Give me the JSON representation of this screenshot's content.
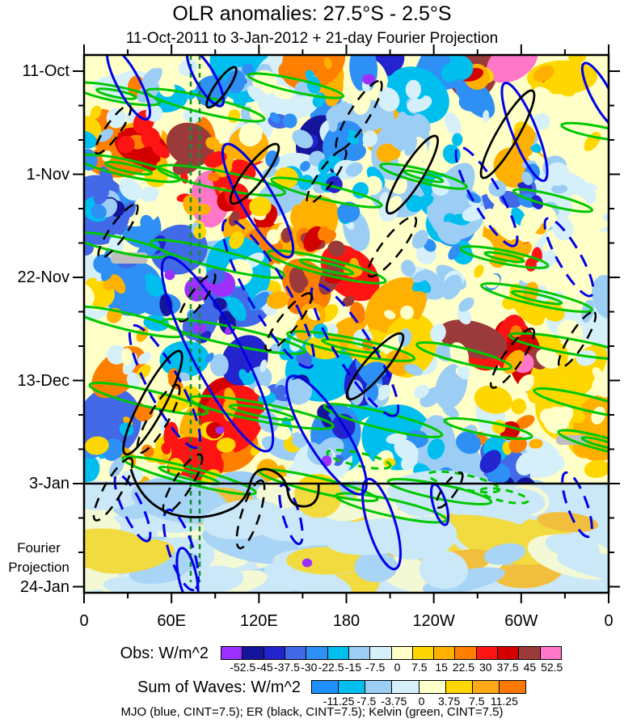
{
  "chart_data": {
    "type": "heatmap",
    "subtype": "hovmoller-time-longitude",
    "title": "OLR anomalies: 27.5°S - 2.5°S",
    "subtitle": "11-Oct-2011 to 3-Jan-2012 + 21-day Fourier Projection",
    "x_axis": {
      "ticks": [
        "0",
        "60E",
        "120E",
        "180",
        "120W",
        "60W",
        "0"
      ],
      "minor_ticks_per_interval": 1
    },
    "y_axis": {
      "ticks": [
        "11-Oct",
        "1-Nov",
        "22-Nov",
        "13-Dec",
        "3-Jan",
        "24-Jan"
      ],
      "minor_ticks_per_interval": 2,
      "annotation": [
        "Fourier",
        "Projection"
      ]
    },
    "obs_colorbar": {
      "label": "Obs: W/m^2",
      "tick_labels": [
        "-52.5",
        "-45",
        "-37.5",
        "-30",
        "-22.5",
        "-15",
        "-7.5",
        "0",
        "7.5",
        "15",
        "22.5",
        "30",
        "37.5",
        "45",
        "52.5"
      ],
      "colors": [
        "#9B30FF",
        "#15159B",
        "#2424CE",
        "#4169E8",
        "#2E8FF5",
        "#00BFEF",
        "#9CCEF5",
        "#D6F0FA",
        "#FFFFC8",
        "#FFD700",
        "#FFB000",
        "#FF7F00",
        "#FF1414",
        "#D40000",
        "#9B3A3A",
        "#FF77C8"
      ],
      "bar_outline": "#000000"
    },
    "waves_colorbar": {
      "label": "Sum of Waves: W/m^2",
      "tick_labels": [
        "-11.25",
        "-7.5",
        "-3.75",
        "0",
        "3.75",
        "7.5",
        "11.25"
      ],
      "colors": [
        "#1E90FF",
        "#00BFEF",
        "#9CCEF5",
        "#D6F0FA",
        "#FFFFC8",
        "#FFD700",
        "#FFA818",
        "#FF7800"
      ],
      "bar_outline": "#000000"
    },
    "caption": "MJO (blue, CINT=7.5); ER (black, CINT=7.5); Kelvin (green, CINT=7.5)",
    "overlays": [
      {
        "name": "MJO",
        "color": "#0000E8",
        "line_color_word": "blue",
        "cint": 7.5
      },
      {
        "name": "ER",
        "color": "#000000",
        "line_color_word": "black",
        "cint": 7.5
      },
      {
        "name": "Kelvin",
        "color": "#00C800",
        "line_color_word": "green",
        "cint": 7.5
      }
    ],
    "reference_lines": {
      "horizontal_black_line_at": "3-Jan",
      "vertical_dashed_lines_color": "#0F8F2F"
    },
    "missing_data_color": "#BEBEBE",
    "axis_color": "#000000"
  }
}
